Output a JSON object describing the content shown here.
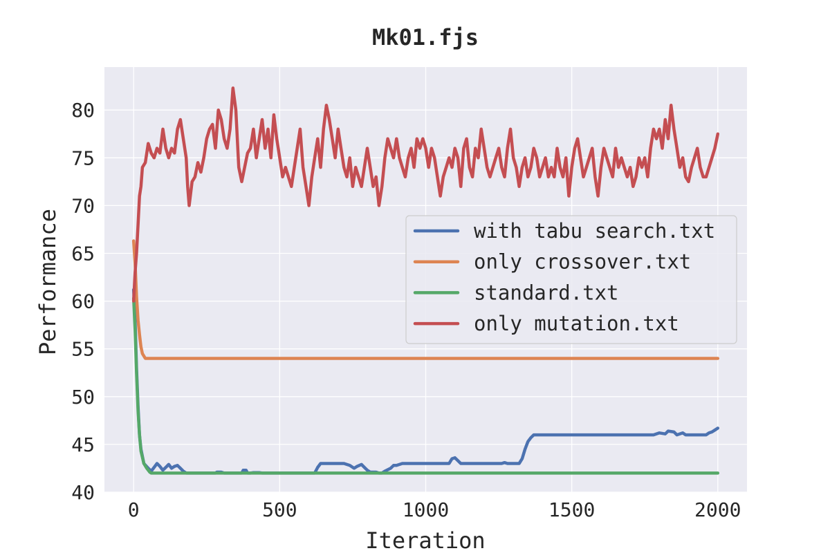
{
  "chart_data": {
    "type": "line",
    "title": "Mk01.fjs",
    "xlabel": "Iteration",
    "ylabel": "Performance",
    "xlim": [
      -100,
      2100
    ],
    "ylim": [
      40,
      84.5
    ],
    "xticks": [
      0,
      500,
      1000,
      1500,
      2000
    ],
    "yticks": [
      40,
      45,
      50,
      55,
      60,
      65,
      70,
      75,
      80
    ],
    "grid": true,
    "legend_position": "center-right",
    "series": [
      {
        "name": "with tabu search.txt",
        "color": "#4c72b0",
        "points": [
          [
            0,
            61.2
          ],
          [
            5,
            58
          ],
          [
            10,
            53
          ],
          [
            15,
            49
          ],
          [
            20,
            46
          ],
          [
            25,
            44.5
          ],
          [
            35,
            43
          ],
          [
            50,
            42.5
          ],
          [
            60,
            42.2
          ],
          [
            70,
            42.6
          ],
          [
            80,
            43
          ],
          [
            90,
            42.7
          ],
          [
            100,
            42.3
          ],
          [
            110,
            42.6
          ],
          [
            120,
            42.9
          ],
          [
            130,
            42.5
          ],
          [
            140,
            42.7
          ],
          [
            150,
            42.8
          ],
          [
            160,
            42.5
          ],
          [
            170,
            42.2
          ],
          [
            180,
            42
          ],
          [
            280,
            42
          ],
          [
            285,
            42.1
          ],
          [
            300,
            42.1
          ],
          [
            310,
            42
          ],
          [
            370,
            42
          ],
          [
            375,
            42.3
          ],
          [
            385,
            42.3
          ],
          [
            390,
            42
          ],
          [
            400,
            42
          ],
          [
            410,
            42.05
          ],
          [
            430,
            42.05
          ],
          [
            440,
            42
          ],
          [
            620,
            42
          ],
          [
            630,
            42.6
          ],
          [
            640,
            43
          ],
          [
            700,
            43
          ],
          [
            720,
            43
          ],
          [
            740,
            42.8
          ],
          [
            755,
            42.5
          ],
          [
            765,
            42.7
          ],
          [
            780,
            42.9
          ],
          [
            790,
            42.6
          ],
          [
            800,
            42.3
          ],
          [
            810,
            42.1
          ],
          [
            830,
            42.1
          ],
          [
            840,
            42
          ],
          [
            850,
            42
          ],
          [
            860,
            42.2
          ],
          [
            880,
            42.5
          ],
          [
            890,
            42.8
          ],
          [
            900,
            42.8
          ],
          [
            920,
            43
          ],
          [
            1080,
            43
          ],
          [
            1090,
            43.5
          ],
          [
            1100,
            43.6
          ],
          [
            1110,
            43.3
          ],
          [
            1120,
            43
          ],
          [
            1260,
            43
          ],
          [
            1270,
            43.1
          ],
          [
            1280,
            43
          ],
          [
            1320,
            43
          ],
          [
            1330,
            43.5
          ],
          [
            1340,
            44.5
          ],
          [
            1350,
            45.3
          ],
          [
            1360,
            45.7
          ],
          [
            1370,
            46
          ],
          [
            1780,
            46
          ],
          [
            1800,
            46.2
          ],
          [
            1820,
            46.1
          ],
          [
            1830,
            46.4
          ],
          [
            1850,
            46.3
          ],
          [
            1860,
            46
          ],
          [
            1880,
            46.2
          ],
          [
            1890,
            46
          ],
          [
            1960,
            46
          ],
          [
            1970,
            46.2
          ],
          [
            1980,
            46.3
          ],
          [
            1990,
            46.5
          ],
          [
            2000,
            46.7
          ]
        ]
      },
      {
        "name": "only crossover.txt",
        "color": "#dd8452",
        "points": [
          [
            0,
            66.3
          ],
          [
            5,
            64
          ],
          [
            10,
            60.5
          ],
          [
            15,
            58
          ],
          [
            20,
            56.5
          ],
          [
            25,
            55.2
          ],
          [
            30,
            54.5
          ],
          [
            40,
            54
          ],
          [
            500,
            54
          ],
          [
            1000,
            54
          ],
          [
            1500,
            54
          ],
          [
            2000,
            54
          ]
        ]
      },
      {
        "name": "standard.txt",
        "color": "#55a868",
        "points": [
          [
            0,
            60.3
          ],
          [
            5,
            57
          ],
          [
            10,
            52.5
          ],
          [
            15,
            48.5
          ],
          [
            20,
            46
          ],
          [
            25,
            44.3
          ],
          [
            35,
            43
          ],
          [
            45,
            42.5
          ],
          [
            55,
            42.1
          ],
          [
            60,
            42
          ],
          [
            500,
            42
          ],
          [
            1000,
            42
          ],
          [
            1500,
            42
          ],
          [
            2000,
            42
          ]
        ]
      },
      {
        "name": "only mutation.txt",
        "color": "#c44e52",
        "points": [
          [
            0,
            60
          ],
          [
            5,
            63
          ],
          [
            10,
            65
          ],
          [
            15,
            68
          ],
          [
            20,
            71
          ],
          [
            25,
            72
          ],
          [
            30,
            74
          ],
          [
            40,
            74.5
          ],
          [
            50,
            76.5
          ],
          [
            60,
            75.5
          ],
          [
            70,
            75
          ],
          [
            80,
            76
          ],
          [
            90,
            75.5
          ],
          [
            100,
            78
          ],
          [
            110,
            76
          ],
          [
            120,
            75
          ],
          [
            130,
            76
          ],
          [
            140,
            75.5
          ],
          [
            150,
            78
          ],
          [
            160,
            79
          ],
          [
            170,
            77
          ],
          [
            180,
            75
          ],
          [
            185,
            72
          ],
          [
            190,
            70
          ],
          [
            200,
            72.5
          ],
          [
            210,
            73
          ],
          [
            220,
            74.5
          ],
          [
            230,
            73.5
          ],
          [
            240,
            75
          ],
          [
            250,
            77
          ],
          [
            260,
            78
          ],
          [
            270,
            78.5
          ],
          [
            280,
            76
          ],
          [
            290,
            80
          ],
          [
            300,
            79
          ],
          [
            310,
            77
          ],
          [
            320,
            76
          ],
          [
            330,
            78
          ],
          [
            340,
            82.3
          ],
          [
            350,
            80
          ],
          [
            360,
            74
          ],
          [
            370,
            72.5
          ],
          [
            380,
            74
          ],
          [
            390,
            75.5
          ],
          [
            400,
            76
          ],
          [
            410,
            78
          ],
          [
            420,
            75
          ],
          [
            430,
            77
          ],
          [
            440,
            79
          ],
          [
            450,
            76
          ],
          [
            460,
            78
          ],
          [
            470,
            75
          ],
          [
            480,
            79.5
          ],
          [
            490,
            77
          ],
          [
            500,
            75
          ],
          [
            510,
            73
          ],
          [
            520,
            74
          ],
          [
            530,
            73
          ],
          [
            540,
            72
          ],
          [
            550,
            74
          ],
          [
            560,
            76
          ],
          [
            570,
            78
          ],
          [
            580,
            74
          ],
          [
            590,
            72
          ],
          [
            600,
            70
          ],
          [
            610,
            73
          ],
          [
            620,
            75
          ],
          [
            630,
            77
          ],
          [
            640,
            74
          ],
          [
            650,
            78
          ],
          [
            660,
            80.5
          ],
          [
            670,
            79
          ],
          [
            680,
            77
          ],
          [
            690,
            75
          ],
          [
            700,
            78
          ],
          [
            710,
            76
          ],
          [
            720,
            74
          ],
          [
            730,
            73
          ],
          [
            740,
            75
          ],
          [
            750,
            72
          ],
          [
            760,
            74
          ],
          [
            770,
            73
          ],
          [
            780,
            72
          ],
          [
            790,
            74
          ],
          [
            800,
            76
          ],
          [
            810,
            74
          ],
          [
            820,
            72
          ],
          [
            830,
            73
          ],
          [
            840,
            70
          ],
          [
            850,
            72
          ],
          [
            860,
            75
          ],
          [
            870,
            77
          ],
          [
            880,
            76
          ],
          [
            890,
            75
          ],
          [
            900,
            77
          ],
          [
            910,
            75
          ],
          [
            920,
            74
          ],
          [
            930,
            73
          ],
          [
            940,
            75
          ],
          [
            950,
            76
          ],
          [
            960,
            74
          ],
          [
            970,
            77
          ],
          [
            980,
            76
          ],
          [
            990,
            77
          ],
          [
            1000,
            76
          ],
          [
            1010,
            74
          ],
          [
            1020,
            76
          ],
          [
            1030,
            75
          ],
          [
            1040,
            73
          ],
          [
            1050,
            71
          ],
          [
            1060,
            73
          ],
          [
            1070,
            74
          ],
          [
            1080,
            75
          ],
          [
            1090,
            74
          ],
          [
            1100,
            76
          ],
          [
            1110,
            75
          ],
          [
            1120,
            72
          ],
          [
            1130,
            76
          ],
          [
            1140,
            77
          ],
          [
            1150,
            74
          ],
          [
            1160,
            73
          ],
          [
            1170,
            76
          ],
          [
            1180,
            75
          ],
          [
            1190,
            78
          ],
          [
            1200,
            76
          ],
          [
            1210,
            74
          ],
          [
            1220,
            73
          ],
          [
            1230,
            74
          ],
          [
            1240,
            75
          ],
          [
            1250,
            76
          ],
          [
            1260,
            74
          ],
          [
            1270,
            73
          ],
          [
            1280,
            76
          ],
          [
            1290,
            78
          ],
          [
            1300,
            75
          ],
          [
            1310,
            74
          ],
          [
            1320,
            72
          ],
          [
            1330,
            74
          ],
          [
            1340,
            75
          ],
          [
            1350,
            73
          ],
          [
            1360,
            74
          ],
          [
            1370,
            76
          ],
          [
            1380,
            75
          ],
          [
            1390,
            73
          ],
          [
            1400,
            74
          ],
          [
            1410,
            75
          ],
          [
            1420,
            73
          ],
          [
            1430,
            74
          ],
          [
            1440,
            73
          ],
          [
            1450,
            76
          ],
          [
            1460,
            74
          ],
          [
            1470,
            73
          ],
          [
            1480,
            75
          ],
          [
            1490,
            71
          ],
          [
            1500,
            74
          ],
          [
            1510,
            76
          ],
          [
            1520,
            77
          ],
          [
            1530,
            75
          ],
          [
            1540,
            73
          ],
          [
            1550,
            74
          ],
          [
            1560,
            75
          ],
          [
            1570,
            76
          ],
          [
            1580,
            73
          ],
          [
            1590,
            71
          ],
          [
            1600,
            74
          ],
          [
            1610,
            76
          ],
          [
            1620,
            75
          ],
          [
            1630,
            74
          ],
          [
            1640,
            73
          ],
          [
            1650,
            76
          ],
          [
            1660,
            74
          ],
          [
            1670,
            75
          ],
          [
            1680,
            74
          ],
          [
            1690,
            73
          ],
          [
            1700,
            74
          ],
          [
            1710,
            72
          ],
          [
            1720,
            73
          ],
          [
            1730,
            75
          ],
          [
            1740,
            74
          ],
          [
            1750,
            75
          ],
          [
            1760,
            73
          ],
          [
            1770,
            76
          ],
          [
            1780,
            78
          ],
          [
            1790,
            77
          ],
          [
            1800,
            78
          ],
          [
            1810,
            76
          ],
          [
            1820,
            79
          ],
          [
            1830,
            77
          ],
          [
            1840,
            80.5
          ],
          [
            1850,
            78
          ],
          [
            1860,
            76
          ],
          [
            1870,
            74
          ],
          [
            1880,
            75
          ],
          [
            1890,
            73
          ],
          [
            1900,
            72.5
          ],
          [
            1910,
            74
          ],
          [
            1920,
            75
          ],
          [
            1930,
            76
          ],
          [
            1940,
            74
          ],
          [
            1950,
            73
          ],
          [
            1960,
            73
          ],
          [
            1970,
            74
          ],
          [
            1980,
            75
          ],
          [
            1990,
            76
          ],
          [
            2000,
            77.5
          ]
        ]
      }
    ]
  }
}
